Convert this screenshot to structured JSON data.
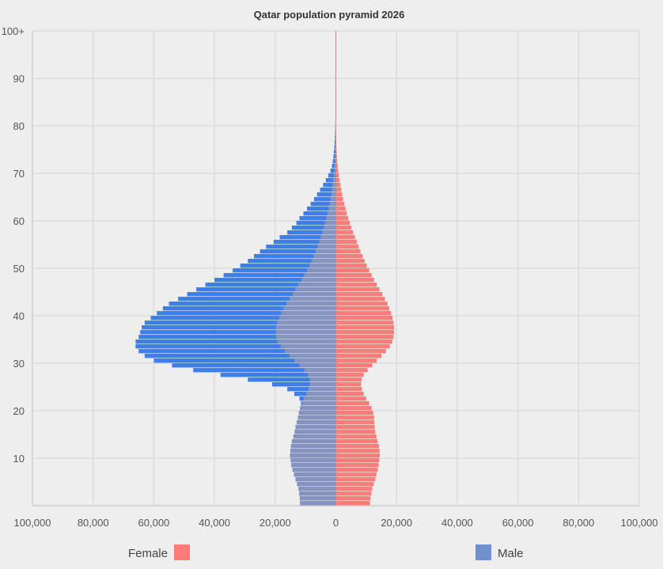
{
  "chart_data": {
    "type": "bar",
    "title": "Qatar population pyramid 2026",
    "orientation": "horizontal-pyramid",
    "xlim": [
      -100000,
      100000
    ],
    "ylim": [
      0,
      100
    ],
    "x_ticks": [
      -100000,
      -80000,
      -60000,
      -40000,
      -20000,
      0,
      20000,
      40000,
      60000,
      80000,
      100000
    ],
    "x_tick_labels": [
      "100,000",
      "80,000",
      "60,000",
      "40,000",
      "20,000",
      "0",
      "20,000",
      "40,000",
      "60,000",
      "80,000",
      "100,000"
    ],
    "y_ticks": [
      10,
      20,
      30,
      40,
      50,
      60,
      70,
      80,
      90,
      100
    ],
    "y_tick_labels": [
      "10",
      "20",
      "30",
      "40",
      "50",
      "60",
      "70",
      "80",
      "90",
      "100+"
    ],
    "ages": [
      0,
      1,
      2,
      3,
      4,
      5,
      6,
      7,
      8,
      9,
      10,
      11,
      12,
      13,
      14,
      15,
      16,
      17,
      18,
      19,
      20,
      21,
      22,
      23,
      24,
      25,
      26,
      27,
      28,
      29,
      30,
      31,
      32,
      33,
      34,
      35,
      36,
      37,
      38,
      39,
      40,
      41,
      42,
      43,
      44,
      45,
      46,
      47,
      48,
      49,
      50,
      51,
      52,
      53,
      54,
      55,
      56,
      57,
      58,
      59,
      60,
      61,
      62,
      63,
      64,
      65,
      66,
      67,
      68,
      69,
      70,
      71,
      72,
      73,
      74,
      75,
      76,
      77,
      78,
      79,
      80,
      81,
      82,
      83,
      84,
      85,
      86,
      87,
      88,
      89,
      90,
      91,
      92,
      93,
      94,
      95,
      96,
      97,
      98,
      99,
      100
    ],
    "series": [
      {
        "name": "Male",
        "color": "#3f7de8",
        "values": [
          11800,
          11900,
          12100,
          12300,
          12800,
          13300,
          13800,
          14300,
          14700,
          14900,
          15100,
          15000,
          14800,
          14500,
          14000,
          13600,
          13300,
          12900,
          12500,
          12200,
          11800,
          11500,
          12000,
          13700,
          16000,
          21000,
          29000,
          38000,
          47000,
          54000,
          60000,
          63000,
          65000,
          66000,
          66000,
          65000,
          64500,
          64000,
          63000,
          61000,
          59000,
          57000,
          55000,
          52000,
          49000,
          46000,
          43000,
          40000,
          37000,
          34000,
          31500,
          29000,
          27000,
          25000,
          23000,
          20500,
          18500,
          16000,
          14500,
          13000,
          12000,
          10700,
          9500,
          8300,
          7200,
          6200,
          5200,
          4200,
          3300,
          2500,
          1800,
          1300,
          1000,
          800,
          650,
          500,
          400,
          320,
          260,
          200,
          160,
          120,
          90,
          70,
          55,
          40,
          30,
          20,
          15,
          10,
          8,
          5,
          4,
          3,
          2,
          2,
          1,
          1,
          0,
          0,
          0
        ]
      },
      {
        "name": "Female",
        "color": "#ff7a7a",
        "values": [
          11200,
          11400,
          11700,
          12000,
          12500,
          13000,
          13400,
          13800,
          14100,
          14300,
          14500,
          14400,
          14200,
          13800,
          13400,
          13000,
          12800,
          12700,
          12600,
          12300,
          11800,
          11000,
          10000,
          9200,
          8600,
          8300,
          8500,
          9200,
          10500,
          12000,
          13500,
          15000,
          16500,
          17800,
          18600,
          19000,
          19200,
          19200,
          19000,
          18700,
          18200,
          17600,
          17000,
          16200,
          15300,
          14400,
          13500,
          12600,
          11800,
          11000,
          10200,
          9500,
          8800,
          8100,
          7500,
          6900,
          6300,
          5700,
          5100,
          4600,
          4100,
          3600,
          3200,
          2800,
          2400,
          2100,
          1800,
          1500,
          1200,
          1000,
          800,
          600,
          450,
          350,
          270,
          200,
          160,
          120,
          90,
          70,
          55,
          40,
          30,
          22,
          16,
          12,
          9,
          6,
          4,
          3,
          2,
          2,
          1,
          1,
          1,
          0,
          0,
          0,
          0,
          0,
          0
        ]
      }
    ],
    "overlay": {
      "description_only_visual": true,
      "male_gray_values": [
        11800,
        11900,
        12100,
        12300,
        12800,
        13300,
        13800,
        14300,
        14700,
        14900,
        15100,
        15000,
        14800,
        14500,
        14000,
        13600,
        13300,
        12900,
        12500,
        12200,
        11800,
        11200,
        10600,
        9800,
        9000,
        8600,
        8600,
        9200,
        10400,
        12000,
        13600,
        15200,
        16800,
        18200,
        19200,
        19700,
        19800,
        19700,
        19300,
        18700,
        18000,
        17200,
        16300,
        15300,
        14300,
        13300,
        12300,
        11300,
        10400,
        9500,
        8700,
        8000,
        7300,
        6700,
        6100,
        5500,
        5000,
        4500,
        4000,
        3600,
        3200,
        2800,
        2400,
        2100,
        1800,
        1500,
        1300,
        1050,
        850,
        650,
        500,
        400,
        300,
        230,
        180,
        130,
        100,
        80,
        60,
        45,
        35,
        25,
        20,
        15,
        10,
        8,
        6,
        4,
        3,
        2,
        2,
        1,
        1,
        1,
        0,
        0,
        0,
        0,
        0,
        0,
        0
      ]
    },
    "legend": {
      "position": "bottom",
      "items": [
        {
          "label": "Female",
          "color": "#ff7a7a"
        },
        {
          "label": "Male",
          "color": "#6f8fcf"
        }
      ]
    },
    "grid": true
  }
}
